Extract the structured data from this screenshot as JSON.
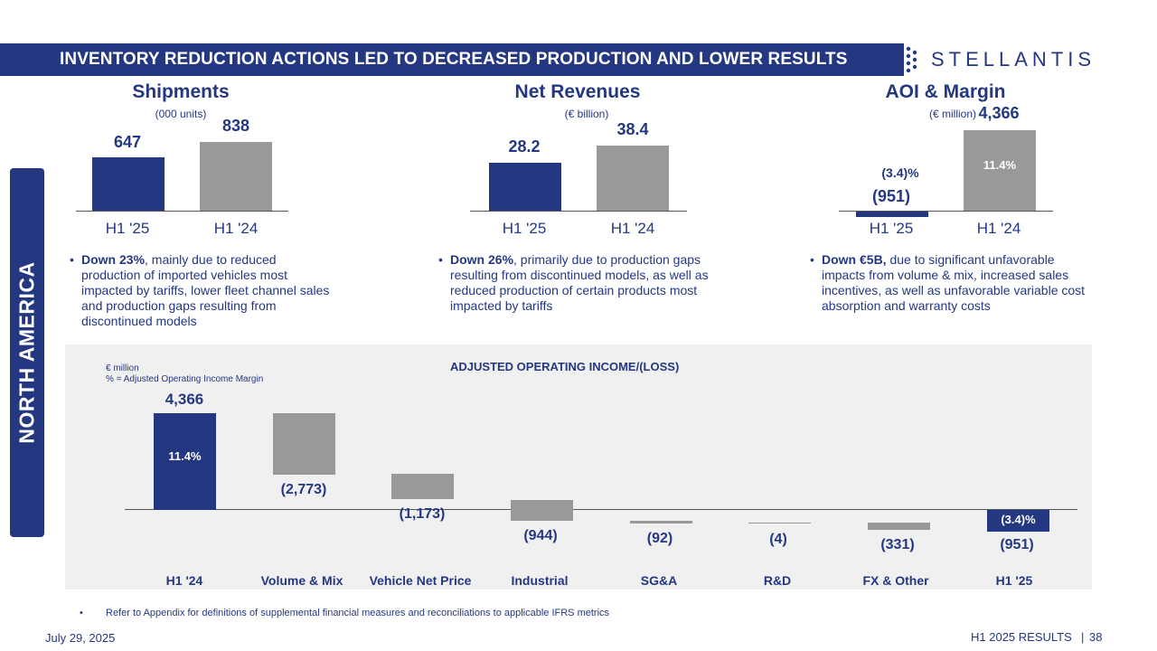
{
  "header": {
    "title": "INVENTORY REDUCTION ACTIONS LED TO DECREASED PRODUCTION AND LOWER RESULTS"
  },
  "logo": {
    "text": "STELLANTIS"
  },
  "sidebar": {
    "label": "NORTH AMERICA"
  },
  "colors": {
    "brand": "#243882",
    "gray_bar": "#999999",
    "panel": "#f0f0f0"
  },
  "shipments": {
    "title": "Shipments",
    "unit": "(000 units)",
    "bars": [
      {
        "label": "H1 '25",
        "value": "647"
      },
      {
        "label": "H1 '24",
        "value": "838"
      }
    ],
    "bullet_bold": "Down 23%",
    "bullet_text": ", mainly due to reduced production of imported vehicles most impacted by tariffs, lower fleet channel sales and production gaps resulting from discontinued models"
  },
  "revenues": {
    "title": "Net Revenues",
    "unit": "(€ billion)",
    "bars": [
      {
        "label": "H1 '25",
        "value": "28.2"
      },
      {
        "label": "H1 '24",
        "value": "38.4"
      }
    ],
    "bullet_bold": "Down 26%",
    "bullet_text": ", primarily due to production gaps resulting from discontinued models, as well as reduced production of certain products most impacted by tariffs"
  },
  "aoi": {
    "title": "AOI & Margin",
    "unit": "(€ million)",
    "bars": [
      {
        "label": "H1 '25",
        "value": "(951)",
        "margin": "(3.4)%"
      },
      {
        "label": "H1 '24",
        "value": "4,366",
        "margin": "11.4%"
      }
    ],
    "bullet_bold": "Down €5B,",
    "bullet_text": " due to significant unfavorable impacts from volume & mix, increased sales incentives, as well as unfavorable variable cost absorption and warranty costs"
  },
  "waterfall": {
    "title": "ADJUSTED OPERATING INCOME/(LOSS)",
    "legend_1": "€ million",
    "legend_2": "% = Adjusted Operating Income Margin",
    "steps": [
      {
        "label": "H1 '24",
        "value": "4,366",
        "margin": "11.4%"
      },
      {
        "label": "Volume & Mix",
        "value": "(2,773)"
      },
      {
        "label": "Vehicle Net Price",
        "value": "(1,173)"
      },
      {
        "label": "Industrial",
        "value": "(944)"
      },
      {
        "label": "SG&A",
        "value": "(92)"
      },
      {
        "label": "R&D",
        "value": "(4)"
      },
      {
        "label": "FX & Other",
        "value": "(331)"
      },
      {
        "label": "H1 '25",
        "value": "(951)",
        "margin": "(3.4)%"
      }
    ]
  },
  "chart_data": [
    {
      "type": "bar",
      "title": "Shipments",
      "ylabel": "(000 units)",
      "categories": [
        "H1 '25",
        "H1 '24"
      ],
      "values": [
        647,
        838
      ]
    },
    {
      "type": "bar",
      "title": "Net Revenues",
      "ylabel": "(€ billion)",
      "categories": [
        "H1 '25",
        "H1 '24"
      ],
      "values": [
        28.2,
        38.4
      ]
    },
    {
      "type": "bar",
      "title": "AOI & Margin",
      "ylabel": "(€ million)",
      "categories": [
        "H1 '25",
        "H1 '24"
      ],
      "values": [
        -951,
        4366
      ],
      "margins": [
        "(3.4)%",
        "11.4%"
      ]
    },
    {
      "type": "waterfall",
      "title": "ADJUSTED OPERATING INCOME/(LOSS)",
      "ylabel": "€ million",
      "categories": [
        "H1 '24",
        "Volume & Mix",
        "Vehicle Net Price",
        "Industrial",
        "SG&A",
        "R&D",
        "FX & Other",
        "H1 '25"
      ],
      "values": [
        4366,
        -2773,
        -1173,
        -944,
        -92,
        -4,
        -331,
        -951
      ]
    }
  ],
  "footer": {
    "note": "Refer to Appendix for definitions of supplemental financial measures and reconciliations to applicable IFRS metrics",
    "note_bullet": "•",
    "date": "July 29, 2025",
    "results": "H1 2025 RESULTS",
    "separator": "|",
    "page": "38"
  }
}
